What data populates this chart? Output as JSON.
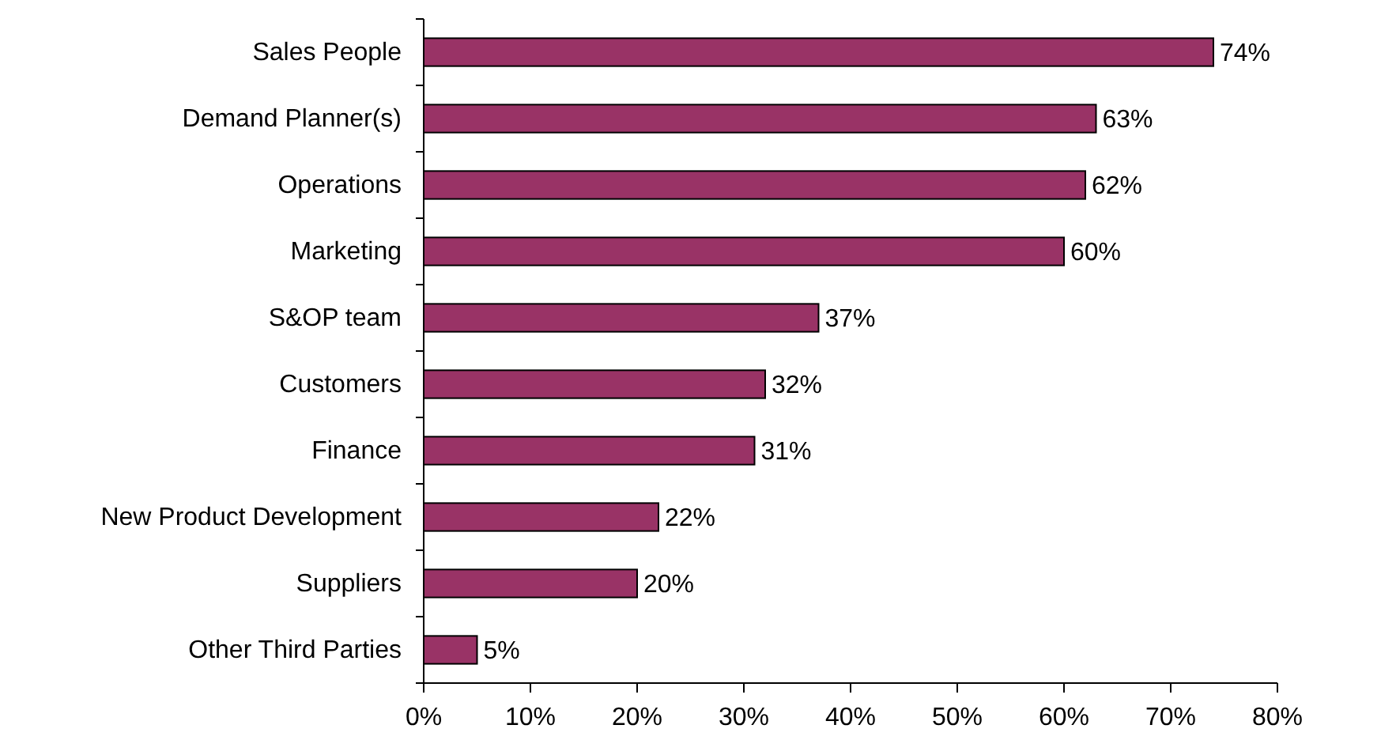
{
  "chart_data": {
    "type": "bar",
    "orientation": "horizontal",
    "categories": [
      "Sales People",
      "Demand Planner(s)",
      "Operations",
      "Marketing",
      "S&OP team",
      "Customers",
      "Finance",
      "New  Product Development",
      "Suppliers",
      "Other Third Parties"
    ],
    "values": [
      74,
      63,
      62,
      60,
      37,
      32,
      31,
      22,
      20,
      5
    ],
    "value_labels": [
      "74%",
      "63%",
      "62%",
      "60%",
      "37%",
      "32%",
      "31%",
      "22%",
      "20%",
      "5%"
    ],
    "color": "#993366",
    "xlim": [
      0,
      80
    ],
    "xticks": [
      {
        "value": 0,
        "label": "0%"
      },
      {
        "value": 10,
        "label": "10%"
      },
      {
        "value": 20,
        "label": "20%"
      },
      {
        "value": 30,
        "label": "30%"
      },
      {
        "value": 40,
        "label": "40%"
      },
      {
        "value": 50,
        "label": "50%"
      },
      {
        "value": 60,
        "label": "60%"
      },
      {
        "value": 70,
        "label": "70%"
      },
      {
        "value": 80,
        "label": "80%"
      }
    ],
    "grid": false
  }
}
